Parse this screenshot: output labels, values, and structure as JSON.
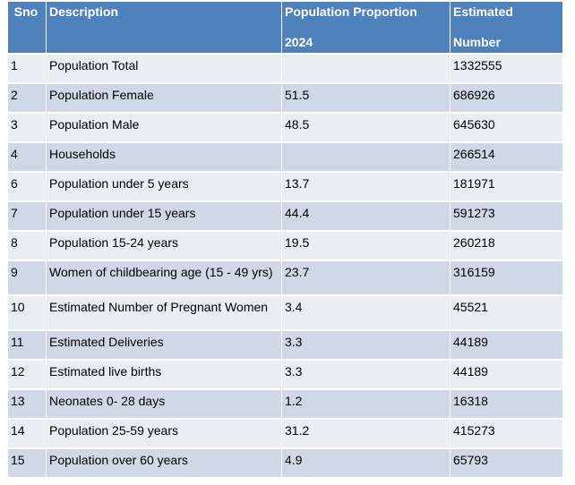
{
  "table": {
    "headers": [
      {
        "line1": "Sno",
        "line2": ""
      },
      {
        "line1": "Description",
        "line2": ""
      },
      {
        "line1": "Population Proportion",
        "line2": "2024"
      },
      {
        "line1": "Estimated",
        "line2": "Number"
      }
    ],
    "rows": [
      {
        "sno": "1",
        "description": "Population Total",
        "proportion": "",
        "number": "1332555"
      },
      {
        "sno": "2",
        "description": "Population Female",
        "proportion": "51.5",
        "number": "686926"
      },
      {
        "sno": "3",
        "description": "Population Male",
        "proportion": "48.5",
        "number": "645630"
      },
      {
        "sno": "4",
        "description": "Households",
        "proportion": "",
        "number": "266514"
      },
      {
        "sno": "6",
        "description": "Population under 5 years",
        "proportion": "13.7",
        "number": "181971"
      },
      {
        "sno": "7",
        "description": "Population under 15 years",
        "proportion": "44.4",
        "number": "591273"
      },
      {
        "sno": "8",
        "description": "Population 15-24 years",
        "proportion": "19.5",
        "number": "260218"
      },
      {
        "sno": "9",
        "description": "Women of childbearing age (15 - 49 yrs)",
        "proportion": "23.7",
        "number": "316159"
      },
      {
        "sno": "10",
        "description": "Estimated Number of Pregnant Women",
        "proportion": "3.4",
        "number": "45521"
      },
      {
        "sno": "11",
        "description": "Estimated Deliveries",
        "proportion": "3.3",
        "number": "44189"
      },
      {
        "sno": "12",
        "description": "Estimated live births",
        "proportion": "3.3",
        "number": "44189"
      },
      {
        "sno": "13",
        "description": "Neonates 0- 28 days",
        "proportion": "1.2",
        "number": "16318"
      },
      {
        "sno": "14",
        "description": "Population 25-59 years",
        "proportion": "31.2",
        "number": "415273"
      },
      {
        "sno": "15",
        "description": "Population over 60 years",
        "proportion": "4.9",
        "number": "65793"
      }
    ]
  },
  "colors": {
    "header_bg": "#4f81bd",
    "header_text": "#ffffff",
    "row_light": "#e9edf4",
    "row_dark": "#d0d8e8"
  }
}
